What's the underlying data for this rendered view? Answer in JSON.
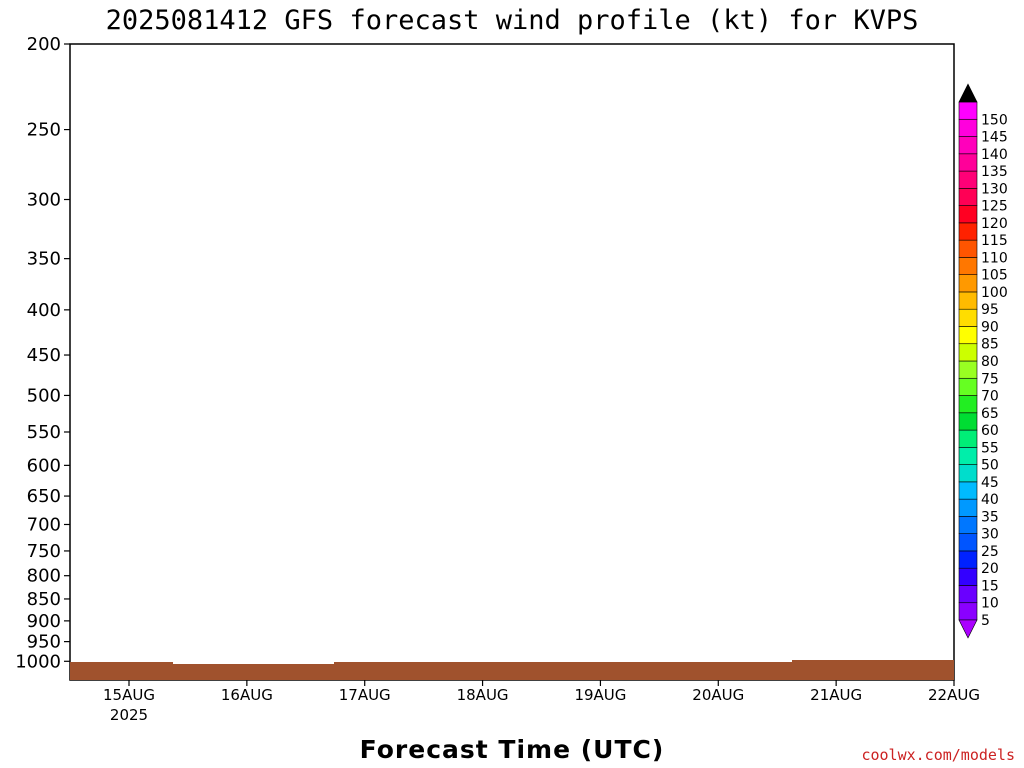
{
  "chart_data": {
    "type": "wind-profile",
    "title": "2025081412 GFS forecast wind profile (kt) for KVPS",
    "xlabel": "Forecast Time (UTC)",
    "credit": "coolwx.com/models",
    "y_axis": {
      "ticks": [
        "200",
        "250",
        "300",
        "350",
        "400",
        "450",
        "500",
        "550",
        "600",
        "650",
        "700",
        "750",
        "800",
        "850",
        "900",
        "950",
        "1000"
      ],
      "scale": "log",
      "range": [
        200,
        1050
      ]
    },
    "x_axis": {
      "ticks": [
        {
          "label": "15AUG",
          "sublabel": "2025"
        },
        {
          "label": "16AUG",
          "sublabel": ""
        },
        {
          "label": "17AUG",
          "sublabel": ""
        },
        {
          "label": "18AUG",
          "sublabel": ""
        },
        {
          "label": "19AUG",
          "sublabel": ""
        },
        {
          "label": "20AUG",
          "sublabel": ""
        },
        {
          "label": "21AUG",
          "sublabel": ""
        },
        {
          "label": "22AUG",
          "sublabel": ""
        }
      ]
    },
    "colorbar": {
      "levels": [
        "5",
        "10",
        "15",
        "20",
        "25",
        "30",
        "35",
        "40",
        "45",
        "50",
        "55",
        "60",
        "65",
        "70",
        "75",
        "80",
        "85",
        "90",
        "95",
        "100",
        "105",
        "110",
        "115",
        "120",
        "125",
        "130",
        "135",
        "140",
        "145",
        "150"
      ],
      "colors": [
        "#8a00ff",
        "#6a00ff",
        "#3300ff",
        "#0022ff",
        "#0055ff",
        "#0077ff",
        "#0099ff",
        "#00bbff",
        "#00ddcc",
        "#00eeaa",
        "#00ee77",
        "#00dd33",
        "#22ee22",
        "#66ff22",
        "#99ff22",
        "#ccff00",
        "#ffff00",
        "#ffdd00",
        "#ffbb00",
        "#ff9900",
        "#ff7700",
        "#ff5500",
        "#ff2200",
        "#ff0022",
        "#ff0055",
        "#ff0077",
        "#ff0099",
        "#ff00bb",
        "#ff00dd",
        "#ff00ff"
      ],
      "top_arrow_color": "#000000",
      "bottom_arrow_color": "#aa00ff"
    },
    "terrain_color": "#a0522d"
  }
}
